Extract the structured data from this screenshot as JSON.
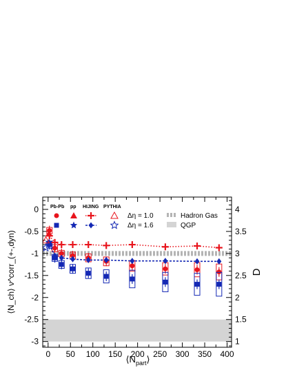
{
  "chart_data": {
    "type": "scatter",
    "x_label_main": "⟨N",
    "x_label_sub": "part",
    "x_label_close": "⟩",
    "y_label": "⟨N_ch⟩ ν^corr_(+-,dyn)",
    "y2_label": "D",
    "xlim": [
      -12,
      410
    ],
    "ylim": [
      -3.13,
      0.28
    ],
    "x_ticks": [
      0,
      50,
      100,
      150,
      200,
      250,
      300,
      350,
      400
    ],
    "x_tick_labels": [
      "0",
      "50",
      "100",
      "150",
      "200",
      "250",
      "300",
      "350",
      "400"
    ],
    "y_ticks": [
      0,
      -0.5,
      -1,
      -1.5,
      -2,
      -2.5,
      -3
    ],
    "y_tick_labels": [
      "0",
      "-0.5",
      "-1",
      "-1.5",
      "-2",
      "-2.5",
      "-3"
    ],
    "y2_ticks": [
      4,
      3.5,
      3,
      2.5,
      2,
      1.5,
      1
    ],
    "y2_tick_labels": [
      "4",
      "3.5",
      "3",
      "2.5",
      "2",
      "1.5",
      "1"
    ],
    "bands": [
      {
        "name": "Hadron Gas",
        "y": -1.0,
        "style": "dashed-gray"
      },
      {
        "name": "QGP",
        "y_range": [
          -3.0,
          -2.5
        ],
        "style": "filled-gray"
      }
    ],
    "legend": {
      "columns": [
        "Pb-Pb",
        "pp",
        "HIJING",
        "PYTHIA"
      ],
      "rows": [
        "Δη = 1.0",
        "Δη = 1.6"
      ],
      "band_labels": [
        "Hadron Gas",
        "QGP"
      ]
    },
    "series": [
      {
        "key": "pbpb_10",
        "color": "#e8141c",
        "marker": "circle",
        "x": [
          3,
          15,
          30,
          55,
          90,
          130,
          188,
          262,
          333,
          382
        ],
        "y": [
          -0.48,
          -0.88,
          -1.0,
          -1.05,
          -1.1,
          -1.18,
          -1.28,
          -1.35,
          -1.37,
          -1.42
        ],
        "sys": [
          0.07,
          0.08,
          0.07,
          0.08,
          0.09,
          0.1,
          0.12,
          0.14,
          0.16,
          0.18
        ]
      },
      {
        "key": "pbpb_16",
        "color": "#1428b4",
        "marker": "square",
        "x": [
          3,
          15,
          30,
          55,
          90,
          130,
          188,
          262,
          333,
          382
        ],
        "y": [
          -0.8,
          -1.1,
          -1.25,
          -1.35,
          -1.45,
          -1.52,
          -1.58,
          -1.65,
          -1.7,
          -1.7
        ],
        "sys": [
          0.08,
          0.08,
          0.09,
          0.1,
          0.12,
          0.15,
          0.2,
          0.22,
          0.25,
          0.27
        ]
      },
      {
        "key": "hijing_10",
        "color": "#e8141c",
        "marker": "plus",
        "line": "dotted",
        "x": [
          3,
          15,
          30,
          55,
          90,
          130,
          188,
          262,
          333,
          382
        ],
        "y": [
          -0.6,
          -0.75,
          -0.8,
          -0.8,
          -0.8,
          -0.82,
          -0.8,
          -0.85,
          -0.83,
          -0.87
        ]
      },
      {
        "key": "hijing_16",
        "color": "#1428b4",
        "marker": "diamond",
        "line": "dashed",
        "x": [
          3,
          15,
          30,
          55,
          90,
          130,
          188,
          262,
          333,
          382
        ],
        "y": [
          -0.8,
          -1.05,
          -1.1,
          -1.13,
          -1.15,
          -1.15,
          -1.17,
          -1.17,
          -1.18,
          -1.18
        ]
      },
      {
        "key": "pp_10",
        "color": "#e8141c",
        "marker": "triangle",
        "x": [
          2
        ],
        "y": [
          -0.55
        ]
      },
      {
        "key": "pp_16",
        "color": "#1428b4",
        "marker": "star",
        "x": [
          2
        ],
        "y": [
          -0.75
        ]
      },
      {
        "key": "pythia_10",
        "color": "#e8141c",
        "marker": "triangle-open",
        "x": [
          -5
        ],
        "y": [
          -0.7
        ]
      },
      {
        "key": "pythia_16",
        "color": "#1428b4",
        "marker": "star-open",
        "x": [
          -5
        ],
        "y": [
          -0.87
        ]
      }
    ]
  }
}
